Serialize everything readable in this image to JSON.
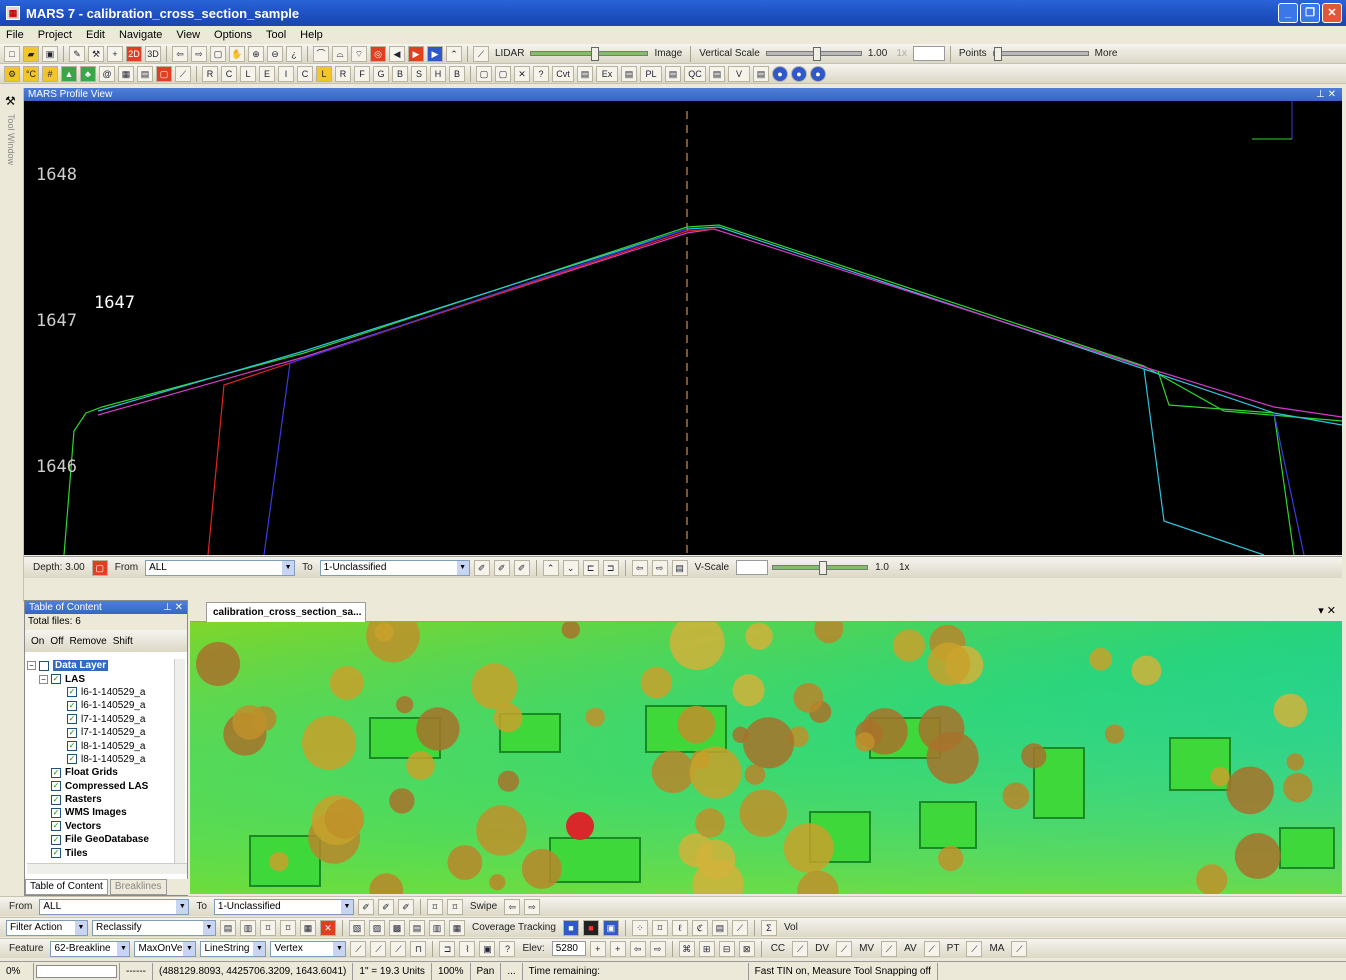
{
  "window": {
    "title": "MARS 7 - calibration_cross_section_sample"
  },
  "menu": [
    "File",
    "Project",
    "Edit",
    "Navigate",
    "View",
    "Options",
    "Tool",
    "Help"
  ],
  "toolbar1": {
    "lidar_label": "LIDAR",
    "image_label": "Image",
    "vertical_scale_label": "Vertical Scale",
    "vertical_scale_value": "1.00",
    "vertical_scale_unit": "1x",
    "points_label": "Points",
    "more_label": "More"
  },
  "toolbar2": {
    "class_labels": [
      "R",
      "C",
      "L",
      "E",
      "I",
      "C",
      "L",
      "R",
      "F",
      "G",
      "B",
      "S",
      "H",
      "B"
    ],
    "text_buttons": [
      "Cvt",
      "Ex",
      "PL",
      "QC",
      "V"
    ]
  },
  "profile_view": {
    "title": "MARS Profile View",
    "tool_window_label": "Tool Window",
    "y_ticks": [
      {
        "value": "1648",
        "elev": 1648
      },
      {
        "value": "1647",
        "elev": 1647
      },
      {
        "value": "1646",
        "elev": 1646
      }
    ],
    "elevation_label": "1647",
    "colors": {
      "green": "#2ed62e",
      "cyan": "#2fc4dc",
      "magenta": "#d23cc8",
      "blue": "#3a3ae0",
      "red": "#e02424",
      "center": "#f0b060"
    }
  },
  "depth_bar": {
    "depth": "Depth: 3.00",
    "from_label": "From",
    "from_value": "ALL",
    "to_label": "To",
    "to_value": "1-Unclassified",
    "vscale_label": "V-Scale",
    "vscale_value": "1.0",
    "vscale_unit": "1x"
  },
  "toc": {
    "title": "Table of Content",
    "total_files": "Total files: 6",
    "tools": [
      "On",
      "Off",
      "Remove",
      "Shift"
    ],
    "tree": {
      "data_layer": "Data Layer",
      "las": "LAS",
      "files": [
        "l6-1-140529_a",
        "l6-1-140529_a",
        "l7-1-140529_a",
        "l7-1-140529_a",
        "l8-1-140529_a",
        "l8-1-140529_a"
      ],
      "groups": [
        "Float Grids",
        "Compressed LAS",
        "Rasters",
        "WMS Images",
        "Vectors",
        "File GeoDatabase",
        "Tiles"
      ]
    },
    "tabs": [
      "Table of Content",
      "Breaklines"
    ]
  },
  "map_view": {
    "tab_label": "calibration_cross_section_sa..."
  },
  "filter_bar1": {
    "from_label": "From",
    "from_value": "ALL",
    "to_label": "To",
    "to_value": "1-Unclassified",
    "swipe_label": "Swipe"
  },
  "filter_bar2": {
    "filter_action": "Filter Action",
    "reclassify": "Reclassify",
    "coverage_tracking": "Coverage Tracking",
    "vol": "Vol"
  },
  "feature_bar": {
    "feature_label": "Feature",
    "feature_value": "62-Breakline",
    "max_label": "MaxOnVerte",
    "linestring": "LineString",
    "vertex": "Vertex",
    "elev_label": "Elev:",
    "elev_value": "5280",
    "text_buttons": [
      "CC",
      "DV",
      "MV",
      "AV",
      "PT",
      "MA"
    ]
  },
  "status": {
    "progress": "0%",
    "dashes": "------",
    "coords": "(488129.8093, 4425706.3209, 1643.6041)",
    "scale": "1\" = 19.3 Units",
    "zoom": "100%",
    "mode": "Pan",
    "ellipsis": "...",
    "time_remaining": "Time remaining:",
    "message": "Fast TIN on, Measure Tool Snapping off"
  }
}
